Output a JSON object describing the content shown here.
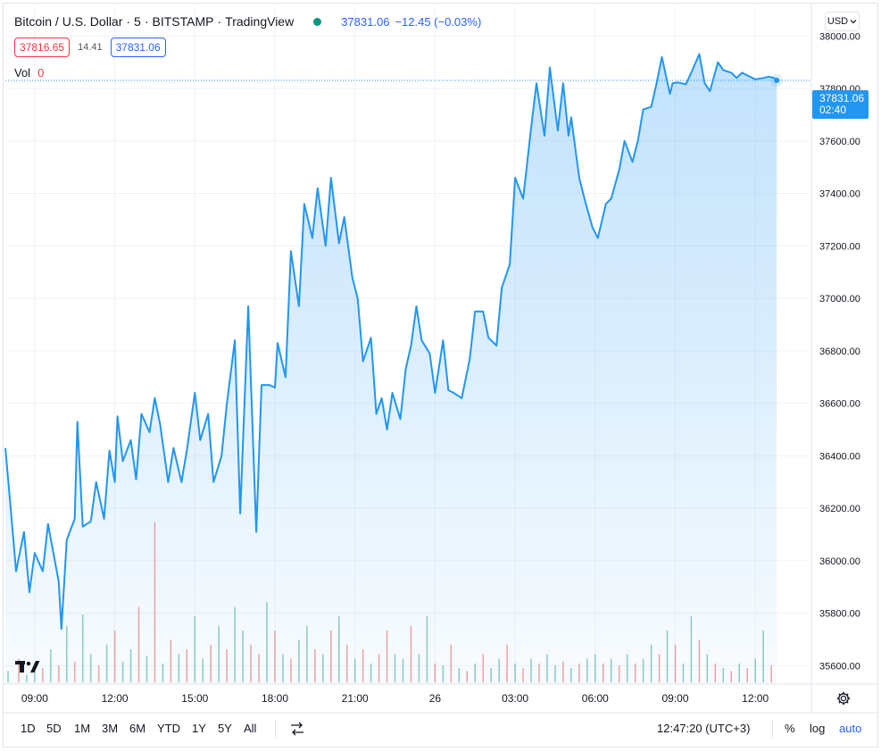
{
  "header": {
    "symbol_name": "Bitcoin / U.S. Dollar",
    "interval": "5",
    "exchange": "BITSTAMP",
    "provider": "TradingView",
    "separator": "·",
    "last_price": "37831.06",
    "change": "−12.45 (−0.03%)",
    "bid": "37816.65",
    "spread": "14.41",
    "ask": "37831.06",
    "vol_label": "Vol",
    "vol_value": "0",
    "currency": "USD",
    "status_color": "#089981"
  },
  "price_tag": {
    "price": "37831.06",
    "countdown": "02:40"
  },
  "toolbar": {
    "ranges": [
      "1D",
      "5D",
      "1M",
      "3M",
      "6M",
      "YTD",
      "1Y",
      "5Y",
      "All"
    ],
    "clock": "12:47:20 (UTC+3)",
    "percent": "%",
    "log": "log",
    "auto": "auto"
  },
  "icons": {
    "logo": "tradingview-logo-icon",
    "compare": "compare-icon",
    "settings": "gear-icon",
    "currency_chevron": "chevron-down-icon"
  },
  "chart_data": {
    "type": "area",
    "title": "Bitcoin / U.S. Dollar · 5 · BITSTAMP",
    "line_color": "#2196f3",
    "fill_color": "#2196f3",
    "x_unit": "hours since 09:00 on the day before the 26th",
    "x_tick_labels": [
      {
        "x": 0,
        "label": "09:00"
      },
      {
        "x": 3,
        "label": "12:00"
      },
      {
        "x": 6,
        "label": "15:00"
      },
      {
        "x": 9,
        "label": "18:00"
      },
      {
        "x": 12,
        "label": "21:00"
      },
      {
        "x": 15,
        "label": "26"
      },
      {
        "x": 18,
        "label": "03:00"
      },
      {
        "x": 21,
        "label": "06:00"
      },
      {
        "x": 24,
        "label": "09:00"
      },
      {
        "x": 27,
        "label": "12:00"
      }
    ],
    "y_ticks": [
      35600,
      35800,
      36000,
      36200,
      36400,
      36600,
      36800,
      37000,
      37200,
      37400,
      37600,
      37800,
      38000
    ],
    "y_tick_labels": [
      "35600.00",
      "35800.00",
      "36000.00",
      "36200.00",
      "36400.00",
      "36600.00",
      "36800.00",
      "37000.00",
      "37200.00",
      "37400.00",
      "37600.00",
      "37800.00",
      "38000.00"
    ],
    "xlim": [
      -1.1,
      28.9
    ],
    "ylim": [
      35530,
      38110
    ],
    "grid": true,
    "last_price_line": 37831.06,
    "series": [
      {
        "x": [
          -1.1,
          -0.9,
          -0.7,
          -0.4,
          -0.2,
          0.0,
          0.3,
          0.5,
          0.7,
          0.9,
          1.0,
          1.2,
          1.5,
          1.6,
          1.8,
          2.1,
          2.3,
          2.6,
          2.8,
          3.0,
          3.1,
          3.3,
          3.6,
          3.8,
          4.0,
          4.3,
          4.5,
          4.7,
          5.0,
          5.2,
          5.5,
          5.7,
          6.0,
          6.2,
          6.5,
          6.7,
          7.0,
          7.2,
          7.5,
          7.7,
          8.0,
          8.3,
          8.5,
          8.8,
          9.0,
          9.1,
          9.4,
          9.6,
          9.9,
          10.1,
          10.4,
          10.6,
          10.9,
          11.1,
          11.4,
          11.6,
          11.9,
          12.1,
          12.3,
          12.6,
          12.8,
          13.0,
          13.2,
          13.4,
          13.7,
          13.9,
          14.1,
          14.3,
          14.5,
          14.8,
          15.0,
          15.3,
          15.5,
          15.7,
          16.0,
          16.3,
          16.5,
          16.8,
          17.0,
          17.3,
          17.5,
          17.8,
          18.0,
          18.3,
          18.6,
          18.8,
          19.1,
          19.3,
          19.6,
          19.8,
          20.0,
          20.1,
          20.4,
          20.6,
          20.9,
          21.1,
          21.4,
          21.6,
          21.9,
          22.1,
          22.4,
          22.6,
          22.8,
          23.1,
          23.3,
          23.5,
          23.8,
          23.9,
          24.1,
          24.4,
          24.6,
          24.9,
          25.1,
          25.3,
          25.6,
          25.8,
          26.1,
          26.3,
          26.5,
          26.8,
          27.0,
          27.3,
          27.5,
          27.7,
          27.8
        ],
        "y": [
          36430,
          36200,
          35960,
          36110,
          35880,
          36030,
          35960,
          36140,
          36030,
          35920,
          35740,
          36080,
          36160,
          36530,
          36130,
          36150,
          36300,
          36160,
          36420,
          36300,
          36550,
          36380,
          36460,
          36310,
          36560,
          36490,
          36620,
          36520,
          36300,
          36430,
          36300,
          36420,
          36640,
          36460,
          36560,
          36300,
          36400,
          36600,
          36840,
          36180,
          36970,
          36110,
          36670,
          36670,
          36660,
          36830,
          36700,
          37180,
          36970,
          37360,
          37230,
          37420,
          37200,
          37460,
          37210,
          37310,
          37080,
          37000,
          36760,
          36850,
          36560,
          36620,
          36500,
          36640,
          36540,
          36730,
          36820,
          36970,
          36840,
          36790,
          36640,
          36840,
          36650,
          36640,
          36620,
          36770,
          36950,
          36950,
          36850,
          36820,
          37040,
          37130,
          37460,
          37380,
          37650,
          37820,
          37620,
          37880,
          37640,
          37820,
          37620,
          37690,
          37460,
          37380,
          37270,
          37230,
          37360,
          37380,
          37490,
          37600,
          37520,
          37600,
          37720,
          37730,
          37820,
          37920,
          37780,
          37820,
          37823,
          37816,
          37860,
          37931,
          37820,
          37790,
          37900,
          37870,
          37860,
          37840,
          37860,
          37845,
          37835,
          37840,
          37845,
          37840,
          37831.06
        ]
      }
    ],
    "volume": {
      "x": [
        -1.0,
        -0.6,
        -0.3,
        0.0,
        0.3,
        0.6,
        0.9,
        1.2,
        1.5,
        1.8,
        2.1,
        2.4,
        2.7,
        3.0,
        3.3,
        3.6,
        3.9,
        4.2,
        4.5,
        4.8,
        5.1,
        5.4,
        5.7,
        6.0,
        6.3,
        6.6,
        6.9,
        7.2,
        7.5,
        7.8,
        8.1,
        8.4,
        8.7,
        9.0,
        9.3,
        9.6,
        9.9,
        10.2,
        10.5,
        10.8,
        11.1,
        11.4,
        11.7,
        12.0,
        12.3,
        12.6,
        12.9,
        13.2,
        13.5,
        13.8,
        14.1,
        14.4,
        14.7,
        15.0,
        15.3,
        15.6,
        15.9,
        16.2,
        16.5,
        16.8,
        17.1,
        17.4,
        17.7,
        18.0,
        18.3,
        18.6,
        18.9,
        19.2,
        19.5,
        19.8,
        20.1,
        20.4,
        20.7,
        21.0,
        21.3,
        21.6,
        21.9,
        22.2,
        22.5,
        22.8,
        23.1,
        23.4,
        23.7,
        24.0,
        24.3,
        24.6,
        24.9,
        25.2,
        25.5,
        25.8,
        26.1,
        26.4,
        26.7,
        27.0,
        27.3,
        27.6
      ],
      "values": [
        12,
        25,
        8,
        20,
        15,
        35,
        18,
        60,
        22,
        72,
        30,
        18,
        40,
        55,
        22,
        35,
        80,
        28,
        170,
        20,
        45,
        30,
        35,
        70,
        25,
        40,
        60,
        35,
        80,
        55,
        40,
        30,
        85,
        55,
        30,
        25,
        45,
        60,
        35,
        30,
        55,
        70,
        40,
        25,
        35,
        20,
        30,
        55,
        30,
        25,
        60,
        30,
        70,
        20,
        18,
        40,
        15,
        12,
        20,
        30,
        15,
        25,
        40,
        20,
        15,
        25,
        20,
        30,
        18,
        22,
        15,
        20,
        25,
        30,
        20,
        25,
        18,
        30,
        20,
        25,
        40,
        30,
        55,
        40,
        20,
        70,
        45,
        30,
        20,
        15,
        12,
        20,
        15,
        25,
        55,
        18
      ],
      "up": [
        true,
        false,
        true,
        true,
        false,
        true,
        false,
        true,
        false,
        true,
        true,
        false,
        true,
        false,
        true,
        true,
        false,
        true,
        false,
        true,
        false,
        true,
        false,
        true,
        true,
        false,
        true,
        false,
        true,
        true,
        false,
        false,
        true,
        false,
        true,
        false,
        true,
        true,
        false,
        true,
        false,
        true,
        false,
        true,
        false,
        true,
        false,
        false,
        true,
        true,
        false,
        true,
        true,
        false,
        true,
        false,
        true,
        false,
        true,
        false,
        true,
        true,
        false,
        true,
        false,
        true,
        false,
        true,
        true,
        false,
        true,
        false,
        true,
        true,
        false,
        true,
        false,
        true,
        false,
        true,
        true,
        false,
        true,
        false,
        true,
        true,
        false,
        true,
        false,
        true,
        false,
        true,
        false,
        true,
        true,
        false
      ]
    }
  }
}
